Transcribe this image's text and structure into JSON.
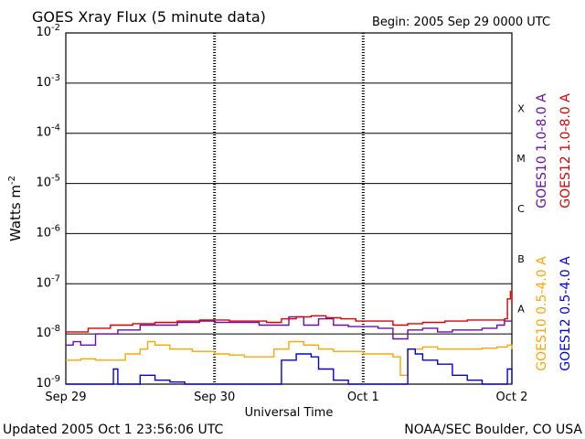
{
  "chart_data": {
    "type": "line",
    "title": "GOES Xray Flux (5 minute data)",
    "begin": "Begin:  2005 Sep 29 0000 UTC",
    "xlabel": "Universal Time",
    "ylabel": "Watts m",
    "ylabel_exponent": "-2",
    "x_unit": "days since 2005 Sep 29 0000 UTC",
    "xlim": [
      0,
      3
    ],
    "x_ticks": [
      {
        "label": "Sep 29",
        "value": 0
      },
      {
        "label": "Sep 30",
        "value": 1
      },
      {
        "label": "Oct 1",
        "value": 2
      },
      {
        "label": "Oct 2",
        "value": 3
      }
    ],
    "y_scale": "log",
    "ylim": [
      1e-09,
      0.01
    ],
    "y_ticks": [
      {
        "base": "10",
        "exp": "-9",
        "value": 1e-09
      },
      {
        "base": "10",
        "exp": "-8",
        "value": 1e-08
      },
      {
        "base": "10",
        "exp": "-7",
        "value": 1e-07
      },
      {
        "base": "10",
        "exp": "-6",
        "value": 1e-06
      },
      {
        "base": "10",
        "exp": "-5",
        "value": 1e-05
      },
      {
        "base": "10",
        "exp": "-4",
        "value": 0.0001
      },
      {
        "base": "10",
        "exp": "-3",
        "value": 0.001
      },
      {
        "base": "10",
        "exp": "-2",
        "value": 0.01
      }
    ],
    "flare_classes": [
      {
        "label": "A",
        "value": 1e-08
      },
      {
        "label": "B",
        "value": 1e-07
      },
      {
        "label": "C",
        "value": 1e-06
      },
      {
        "label": "M",
        "value": 1e-05
      },
      {
        "label": "X",
        "value": 0.0001
      }
    ],
    "grid": {
      "horizontal_lines_at": [
        1e-08,
        1e-07,
        1e-06,
        1e-05,
        0.0001,
        0.001
      ],
      "vertical_dashed_at_days": true
    },
    "series": [
      {
        "name": "GOES10 1.0-8.0 A",
        "color": "#6a0dad",
        "points": [
          [
            0,
            6e-09
          ],
          [
            0.05,
            7e-09
          ],
          [
            0.1,
            6e-09
          ],
          [
            0.2,
            1e-08
          ],
          [
            0.35,
            1.2e-08
          ],
          [
            0.5,
            1.5e-08
          ],
          [
            0.6,
            1.5e-08
          ],
          [
            0.75,
            1.7e-08
          ],
          [
            0.9,
            1.8e-08
          ],
          [
            1.0,
            1.7e-08
          ],
          [
            1.1,
            1.7e-08
          ],
          [
            1.2,
            1.7e-08
          ],
          [
            1.3,
            1.5e-08
          ],
          [
            1.4,
            1.5e-08
          ],
          [
            1.5,
            2.2e-08
          ],
          [
            1.6,
            1.5e-08
          ],
          [
            1.7,
            2e-08
          ],
          [
            1.8,
            1.5e-08
          ],
          [
            1.9,
            1.4e-08
          ],
          [
            2.0,
            1.4e-08
          ],
          [
            2.1,
            1.3e-08
          ],
          [
            2.2,
            8e-09
          ],
          [
            2.3,
            1.2e-08
          ],
          [
            2.4,
            1.3e-08
          ],
          [
            2.5,
            1.1e-08
          ],
          [
            2.6,
            1.2e-08
          ],
          [
            2.7,
            1.2e-08
          ],
          [
            2.8,
            1.3e-08
          ],
          [
            2.9,
            1.5e-08
          ],
          [
            2.95,
            1.8e-08
          ],
          [
            3.0,
            2e-08
          ]
        ]
      },
      {
        "name": "GOES12 1.0-8.0 A",
        "color": "#dd0000",
        "points": [
          [
            0,
            1.1e-08
          ],
          [
            0.15,
            1.3e-08
          ],
          [
            0.3,
            1.5e-08
          ],
          [
            0.45,
            1.6e-08
          ],
          [
            0.6,
            1.7e-08
          ],
          [
            0.75,
            1.8e-08
          ],
          [
            0.9,
            1.9e-08
          ],
          [
            1.0,
            1.9e-08
          ],
          [
            1.1,
            1.8e-08
          ],
          [
            1.25,
            1.8e-08
          ],
          [
            1.35,
            1.7e-08
          ],
          [
            1.45,
            2e-08
          ],
          [
            1.55,
            2.2e-08
          ],
          [
            1.65,
            2.3e-08
          ],
          [
            1.75,
            2.1e-08
          ],
          [
            1.85,
            2e-08
          ],
          [
            1.95,
            1.8e-08
          ],
          [
            2.0,
            1.8e-08
          ],
          [
            2.1,
            1.8e-08
          ],
          [
            2.2,
            1.5e-08
          ],
          [
            2.3,
            1.6e-08
          ],
          [
            2.4,
            1.7e-08
          ],
          [
            2.55,
            1.8e-08
          ],
          [
            2.7,
            1.9e-08
          ],
          [
            2.85,
            1.9e-08
          ],
          [
            2.95,
            2e-08
          ],
          [
            2.97,
            5e-08
          ],
          [
            2.99,
            7e-08
          ],
          [
            3.0,
            4e-08
          ]
        ]
      },
      {
        "name": "GOES10 0.5-4.0 A",
        "color": "#ffa500",
        "points": [
          [
            0,
            3e-09
          ],
          [
            0.1,
            3.2e-09
          ],
          [
            0.2,
            3e-09
          ],
          [
            0.3,
            3e-09
          ],
          [
            0.4,
            4e-09
          ],
          [
            0.5,
            5e-09
          ],
          [
            0.55,
            7e-09
          ],
          [
            0.6,
            6e-09
          ],
          [
            0.7,
            5e-09
          ],
          [
            0.85,
            4.5e-09
          ],
          [
            1.0,
            4e-09
          ],
          [
            1.1,
            3.8e-09
          ],
          [
            1.2,
            3.5e-09
          ],
          [
            1.3,
            3.5e-09
          ],
          [
            1.4,
            5e-09
          ],
          [
            1.5,
            7e-09
          ],
          [
            1.6,
            6e-09
          ],
          [
            1.7,
            5e-09
          ],
          [
            1.8,
            4.5e-09
          ],
          [
            1.9,
            4.5e-09
          ],
          [
            2.0,
            4e-09
          ],
          [
            2.1,
            4e-09
          ],
          [
            2.2,
            3.5e-09
          ],
          [
            2.25,
            1.5e-09
          ],
          [
            2.3,
            5e-09
          ],
          [
            2.4,
            5.5e-09
          ],
          [
            2.5,
            5e-09
          ],
          [
            2.6,
            5e-09
          ],
          [
            2.7,
            5e-09
          ],
          [
            2.8,
            5.2e-09
          ],
          [
            2.9,
            5.5e-09
          ],
          [
            2.97,
            6e-09
          ],
          [
            3.0,
            5e-09
          ]
        ]
      },
      {
        "name": "GOES12 0.5-4.0 A",
        "color": "#0000ee",
        "points": [
          [
            0,
            1e-09
          ],
          [
            0.2,
            1e-09
          ],
          [
            0.3,
            1e-09
          ],
          [
            0.32,
            2e-09
          ],
          [
            0.35,
            1e-09
          ],
          [
            0.45,
            1e-09
          ],
          [
            0.5,
            1.5e-09
          ],
          [
            0.6,
            1.2e-09
          ],
          [
            0.7,
            1.1e-09
          ],
          [
            0.8,
            1e-09
          ],
          [
            0.9,
            1e-09
          ],
          [
            1.0,
            1e-09
          ],
          [
            1.2,
            1e-09
          ],
          [
            1.4,
            1e-09
          ],
          [
            1.45,
            3e-09
          ],
          [
            1.55,
            4e-09
          ],
          [
            1.65,
            3.5e-09
          ],
          [
            1.7,
            2e-09
          ],
          [
            1.8,
            1.2e-09
          ],
          [
            1.9,
            1e-09
          ],
          [
            2.0,
            1e-09
          ],
          [
            2.1,
            1e-09
          ],
          [
            2.2,
            1e-09
          ],
          [
            2.3,
            5e-09
          ],
          [
            2.35,
            4e-09
          ],
          [
            2.4,
            3e-09
          ],
          [
            2.5,
            2.5e-09
          ],
          [
            2.6,
            1.5e-09
          ],
          [
            2.7,
            1.2e-09
          ],
          [
            2.8,
            1e-09
          ],
          [
            2.9,
            1e-09
          ],
          [
            2.97,
            2e-09
          ],
          [
            3.0,
            1e-09
          ]
        ]
      }
    ]
  },
  "footer": {
    "updated": "Updated 2005 Oct  1 23:56:06 UTC",
    "credit": "NOAA/SEC Boulder, CO USA"
  }
}
